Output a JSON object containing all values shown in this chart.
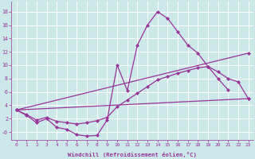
{
  "background_color": "#cce8e8",
  "grid_color": "#ffffff",
  "line_color": "#993399",
  "xlabel": "Windchill (Refroidissement éolien,°C)",
  "xlim": [
    -0.5,
    23.5
  ],
  "ylim": [
    -1.2,
    19.5
  ],
  "xticks": [
    0,
    1,
    2,
    3,
    4,
    5,
    6,
    7,
    8,
    9,
    10,
    11,
    12,
    13,
    14,
    15,
    16,
    17,
    18,
    19,
    20,
    21,
    22,
    23
  ],
  "yticks": [
    0,
    2,
    4,
    6,
    8,
    10,
    12,
    14,
    16,
    18
  ],
  "ytick_labels": [
    "-0",
    "2",
    "4",
    "6",
    "8",
    "10",
    "12",
    "14",
    "16",
    "18"
  ],
  "line1_x": [
    0,
    1,
    2,
    3,
    4,
    5,
    6,
    7,
    8,
    9,
    10,
    11,
    12,
    13,
    14,
    15,
    16,
    17,
    18,
    19,
    20,
    21
  ],
  "line1_y": [
    3.3,
    2.5,
    1.4,
    2.0,
    0.7,
    0.4,
    -0.4,
    -0.6,
    -0.5,
    1.8,
    10.0,
    6.2,
    13.0,
    16.0,
    18.0,
    17.0,
    15.0,
    13.0,
    11.8,
    9.8,
    8.0,
    6.3
  ],
  "line2_x": [
    0,
    23
  ],
  "line2_y": [
    3.3,
    11.8
  ],
  "line3_x": [
    0,
    1,
    2,
    3,
    4,
    5,
    6,
    7,
    8,
    9,
    10,
    11,
    12,
    13,
    14,
    15,
    16,
    17,
    18,
    19,
    20,
    21,
    22,
    23
  ],
  "line3_y": [
    3.3,
    2.6,
    1.8,
    2.2,
    1.6,
    1.4,
    1.2,
    1.4,
    1.7,
    2.2,
    3.8,
    4.8,
    5.8,
    6.8,
    7.8,
    8.3,
    8.8,
    9.2,
    9.6,
    9.8,
    9.0,
    8.0,
    7.5,
    5.0
  ],
  "line4_x": [
    0,
    23
  ],
  "line4_y": [
    3.3,
    5.0
  ]
}
